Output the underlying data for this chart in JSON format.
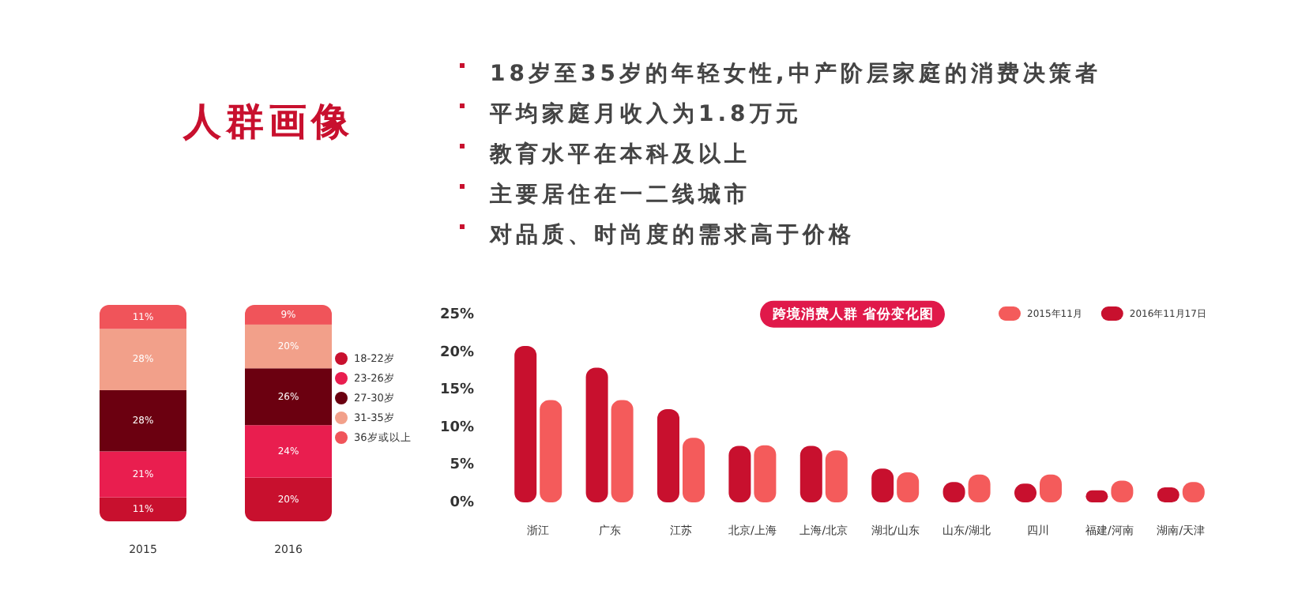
{
  "chart_data": [
    {
      "type": "other",
      "title": "人群画像",
      "annotations": [
        "18岁至35岁的年轻女性,中产阶层家庭的消费决策者",
        "平均家庭月收入为1.8万元",
        "教育水平在本科及以上",
        "主要居住在一二线城市",
        "对品质、时尚度的需求高于价格"
      ],
      "color": "#c8102e"
    },
    {
      "type": "bar",
      "stacked": true,
      "legend": "right",
      "categories": [
        "2015",
        "2016"
      ],
      "series": [
        {
          "name": "18-22岁",
          "color": "#c8102e",
          "values": [
            11,
            20
          ],
          "value_labels": [
            "11%",
            "20%"
          ]
        },
        {
          "name": "23-26岁",
          "color": "#e91e4f",
          "values": [
            21,
            24
          ],
          "value_labels": [
            "21%",
            "24%"
          ]
        },
        {
          "name": "27-30岁",
          "color": "#6b0010",
          "values": [
            28,
            26
          ],
          "value_labels": [
            "28%",
            "26%"
          ]
        },
        {
          "name": "31-35岁",
          "color": "#f2a08a",
          "values": [
            28,
            20
          ],
          "value_labels": [
            "28%",
            "20%"
          ]
        },
        {
          "name": "36岁或以上",
          "color": "#f0545a",
          "values": [
            11,
            9
          ],
          "value_labels": [
            "11%",
            "9%"
          ]
        }
      ]
    },
    {
      "type": "bar",
      "title": "跨境消费人群 省份变化图",
      "legend": "top right",
      "grid": false,
      "categories": [
        "浙江",
        "广东",
        "江苏",
        "北京/上海",
        "上海/北京",
        "湖北/山东",
        "山东/湖北",
        "四川",
        "福建/河南",
        "湖南/天津"
      ],
      "ylim": [
        0,
        25
      ],
      "yticks": [
        {
          "value": 0,
          "label": "0%"
        },
        {
          "value": 5,
          "label": "5%"
        },
        {
          "value": 10,
          "label": "10%"
        },
        {
          "value": 15,
          "label": "15%"
        },
        {
          "value": 20,
          "label": "20%"
        },
        {
          "value": 25,
          "label": "25%"
        }
      ],
      "series": [
        {
          "name": "2016年11月17日",
          "color": "#c8102e",
          "values": [
            20.8,
            17.9,
            12.4,
            7.5,
            7.5,
            4.5,
            2.7,
            2.5,
            1.6,
            2.0
          ]
        },
        {
          "name": "2015年11月",
          "color": "#f45b5b",
          "values": [
            13.6,
            13.6,
            8.6,
            7.6,
            6.9,
            4.0,
            3.7,
            3.7,
            2.9,
            2.7
          ]
        }
      ]
    }
  ]
}
